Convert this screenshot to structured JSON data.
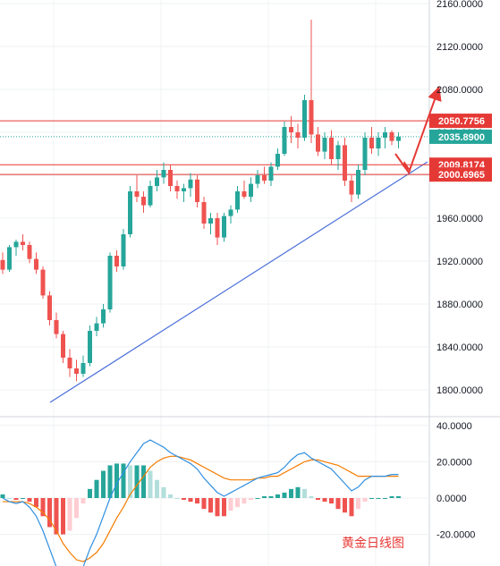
{
  "chart_data": [
    {
      "type": "candlestick",
      "title": "",
      "watermark": "黄金日线图",
      "ylim": [
        1780,
        2165
      ],
      "yticks": [
        "2160.0000",
        "2120.0000",
        "2080.0000",
        "2040.0000",
        "2000.0000",
        "1960.0000",
        "1920.0000",
        "1880.0000",
        "1840.0000",
        "1800.0000"
      ],
      "colors": {
        "up": "#26a69a",
        "down": "#ef5350",
        "trendline": "#4a6fd8",
        "level": "#e53935",
        "price": "#26a69a",
        "arrow": "#e53935"
      },
      "grid": true,
      "levels": [
        {
          "label": "2050.7756",
          "value": 2050.7756
        },
        {
          "label": "2009.8174",
          "value": 2009.8174
        },
        {
          "label": "2000.6965",
          "value": 2000.6965
        }
      ],
      "last_price": {
        "label": "2035.8900",
        "value": 2035.89
      },
      "trendline": [
        [
          0,
          1790
        ],
        [
          78,
          2010
        ]
      ],
      "projection": [
        [
          72,
          2030
        ],
        [
          75,
          1998
        ],
        [
          80,
          2076
        ]
      ],
      "candles": [
        [
          1921,
          1928,
          1908,
          1912
        ],
        [
          1912,
          1935,
          1910,
          1933
        ],
        [
          1933,
          1940,
          1925,
          1938
        ],
        [
          1938,
          1945,
          1930,
          1935
        ],
        [
          1935,
          1938,
          1918,
          1922
        ],
        [
          1922,
          1928,
          1908,
          1912
        ],
        [
          1912,
          1915,
          1885,
          1888
        ],
        [
          1888,
          1892,
          1860,
          1865
        ],
        [
          1865,
          1872,
          1848,
          1852
        ],
        [
          1852,
          1855,
          1825,
          1830
        ],
        [
          1830,
          1838,
          1812,
          1820
        ],
        [
          1820,
          1828,
          1808,
          1815
        ],
        [
          1815,
          1832,
          1812,
          1825
        ],
        [
          1825,
          1860,
          1822,
          1855
        ],
        [
          1855,
          1868,
          1850,
          1862
        ],
        [
          1862,
          1880,
          1858,
          1875
        ],
        [
          1875,
          1928,
          1872,
          1925
        ],
        [
          1925,
          1930,
          1910,
          1915
        ],
        [
          1915,
          1950,
          1912,
          1945
        ],
        [
          1945,
          1990,
          1942,
          1985
        ],
        [
          1985,
          2000,
          1975,
          1980
        ],
        [
          1980,
          1985,
          1965,
          1972
        ],
        [
          1972,
          1995,
          1970,
          1990
        ],
        [
          1990,
          2005,
          1985,
          1998
        ],
        [
          1998,
          2012,
          1992,
          2005
        ],
        [
          2005,
          2010,
          1985,
          1990
        ],
        [
          1990,
          1995,
          1978,
          1985
        ],
        [
          1985,
          1992,
          1975,
          1988
        ],
        [
          1988,
          2002,
          1980,
          1996
        ],
        [
          1996,
          2000,
          1970,
          1975
        ],
        [
          1975,
          1980,
          1950,
          1955
        ],
        [
          1955,
          1965,
          1945,
          1960
        ],
        [
          1960,
          1965,
          1935,
          1942
        ],
        [
          1942,
          1965,
          1938,
          1962
        ],
        [
          1962,
          1972,
          1955,
          1968
        ],
        [
          1968,
          1990,
          1965,
          1985
        ],
        [
          1985,
          1995,
          1978,
          1980
        ],
        [
          1980,
          1998,
          1975,
          1992
        ],
        [
          1992,
          2005,
          1988,
          2000
        ],
        [
          2000,
          2008,
          1992,
          1995
        ],
        [
          1995,
          2012,
          1990,
          2008
        ],
        [
          2008,
          2025,
          2005,
          2020
        ],
        [
          2020,
          2050,
          2018,
          2045
        ],
        [
          2045,
          2055,
          2030,
          2040
        ],
        [
          2040,
          2048,
          2025,
          2035
        ],
        [
          2035,
          2075,
          2032,
          2070
        ],
        [
          2070,
          2145,
          2030,
          2038
        ],
        [
          2038,
          2045,
          2018,
          2022
        ],
        [
          2022,
          2040,
          2015,
          2035
        ],
        [
          2035,
          2042,
          2010,
          2015
        ],
        [
          2015,
          2032,
          2005,
          2028
        ],
        [
          2028,
          2035,
          1990,
          1995
        ],
        [
          1995,
          2000,
          1975,
          1982
        ],
        [
          1982,
          2010,
          1978,
          2005
        ],
        [
          2005,
          2040,
          2000,
          2035
        ],
        [
          2035,
          2045,
          2020,
          2025
        ],
        [
          2025,
          2040,
          2018,
          2035
        ],
        [
          2035,
          2045,
          2025,
          2040
        ],
        [
          2040,
          2042,
          2028,
          2032
        ],
        [
          2032,
          2040,
          2025,
          2036
        ]
      ],
      "macd": {
        "ylim": [
          -50,
          42
        ],
        "yticks": [
          "40.0000",
          "20.0000",
          "0.0000",
          "-20.0000"
        ],
        "colors": {
          "macd": "#2f8fe0",
          "signal": "#f57c00",
          "hist_pos": "#26a69a",
          "hist_pos_fade": "#b2dfdb",
          "hist_neg": "#ef5350",
          "hist_neg_fade": "#ffcdd2"
        },
        "macd_line": [
          0,
          -2,
          -3,
          -2,
          -5,
          -10,
          -18,
          -28,
          -38,
          -45,
          -48,
          -45,
          -38,
          -28,
          -20,
          -10,
          0,
          8,
          14,
          20,
          25,
          30,
          32,
          30,
          28,
          25,
          23,
          21,
          19,
          16,
          11,
          7,
          3,
          1,
          3,
          5,
          7,
          9,
          11,
          12,
          13,
          14,
          17,
          21,
          24,
          25,
          22,
          20,
          18,
          16,
          12,
          8,
          4,
          6,
          10,
          12,
          12,
          12,
          13,
          13
        ],
        "signal_line": [
          -2,
          -2,
          -2,
          -2,
          -3,
          -5,
          -8,
          -12,
          -18,
          -25,
          -30,
          -34,
          -35,
          -33,
          -30,
          -25,
          -18,
          -11,
          -5,
          2,
          7,
          12,
          17,
          20,
          22,
          23,
          23,
          22,
          21,
          19,
          17,
          15,
          13,
          11,
          10,
          10,
          10,
          10,
          11,
          11,
          12,
          12,
          14,
          16,
          18,
          20,
          21,
          21,
          20,
          19,
          18,
          16,
          14,
          12,
          12,
          12,
          12,
          12,
          12,
          12
        ],
        "histogram": [
          2,
          0,
          -1,
          0,
          -2,
          -5,
          -10,
          -16,
          -20,
          -20,
          -18,
          -11,
          -3,
          5,
          10,
          15,
          18,
          19,
          19,
          18,
          18,
          18,
          15,
          10,
          6,
          2,
          0,
          -1,
          -2,
          -3,
          -6,
          -8,
          -10,
          -10,
          -7,
          -5,
          -3,
          -1,
          0,
          1,
          1,
          2,
          3,
          5,
          6,
          5,
          1,
          -1,
          -2,
          -3,
          -6,
          -8,
          -10,
          -6,
          -2,
          0,
          0,
          0,
          1,
          1
        ]
      }
    }
  ]
}
